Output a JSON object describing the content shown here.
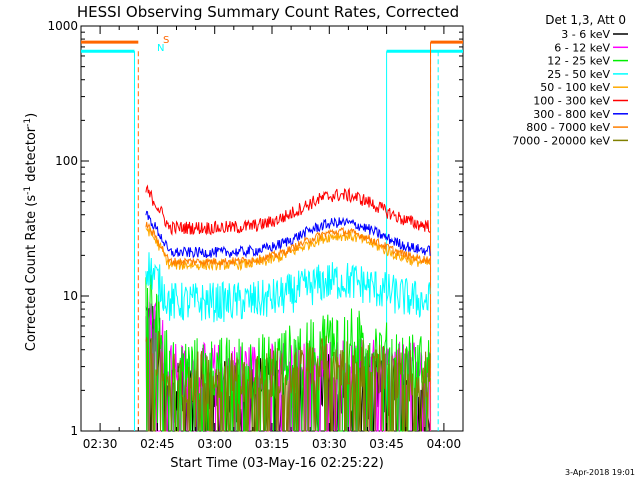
{
  "chart_data": {
    "type": "line",
    "title": "HESSI Observing Summary Count Rates, Corrected",
    "ylabel_main": "Corrected Count Rate (s",
    "ylabel_sup1": "-1",
    "ylabel_mid": " detector",
    "ylabel_sup2": "-1",
    "ylabel_end": ")",
    "xlabel": "Start Time (03-May-16 02:25:22)",
    "footer": "3-Apr-2018 19:01",
    "y_scale": "log",
    "ylim": [
      1,
      1000
    ],
    "xlim_minutes_after_0225": [
      0,
      100
    ],
    "x_ticks": [
      {
        "label": "02:30",
        "t": 5
      },
      {
        "label": "02:45",
        "t": 20
      },
      {
        "label": "03:00",
        "t": 35
      },
      {
        "label": "03:15",
        "t": 50
      },
      {
        "label": "03:30",
        "t": 65
      },
      {
        "label": "03:45",
        "t": 80
      },
      {
        "label": "04:00",
        "t": 95
      }
    ],
    "y_ticks": [
      {
        "label": "1",
        "v": 1
      },
      {
        "label": "10",
        "v": 10
      },
      {
        "label": "100",
        "v": 100
      },
      {
        "label": "1000",
        "v": 1000
      }
    ],
    "legend_header": "Det 1,3, Att 0",
    "series": [
      {
        "name": "3 - 6 keV",
        "color": "#000000",
        "base": 2.0,
        "amp": 0.2,
        "noise": 0.5
      },
      {
        "name": "6 - 12 keV",
        "color": "#ff00ff",
        "base": 3.0,
        "amp": 0.3,
        "noise": 0.35
      },
      {
        "name": "12 - 25 keV",
        "color": "#00ee00",
        "base": 3.0,
        "amp": 2.0,
        "noise": 0.45
      },
      {
        "name": "25 - 50 keV",
        "color": "#00ffff",
        "base": 9.0,
        "amp": 4.0,
        "noise": 0.3
      },
      {
        "name": "50 - 100 keV",
        "color": "#ffaa00",
        "base": 17.0,
        "amp": 11.0,
        "noise": 0.08
      },
      {
        "name": "100 - 300 keV",
        "color": "#ff0000",
        "base": 32.0,
        "amp": 24.0,
        "noise": 0.1
      },
      {
        "name": "300 - 800 keV",
        "color": "#0000ff",
        "base": 21.0,
        "amp": 14.0,
        "noise": 0.08
      },
      {
        "name": "800 - 7000 keV",
        "color": "#ff7f00",
        "base": 18.0,
        "amp": 12.0,
        "noise": 0.06
      },
      {
        "name": "7000 - 20000 keV",
        "color": "#808000",
        "base": 2.5,
        "amp": 0.8,
        "noise": 0.4
      }
    ],
    "data_window_minutes": [
      17,
      91.5
    ],
    "saa_label": "S",
    "night_label": "N",
    "markers": [
      {
        "t": 14,
        "color": "#00ffff"
      },
      {
        "t": 15,
        "color": "#ff6600"
      },
      {
        "t": 91.5,
        "color": "#ff6600"
      },
      {
        "t": 93.5,
        "color": "#00ffff"
      }
    ]
  }
}
